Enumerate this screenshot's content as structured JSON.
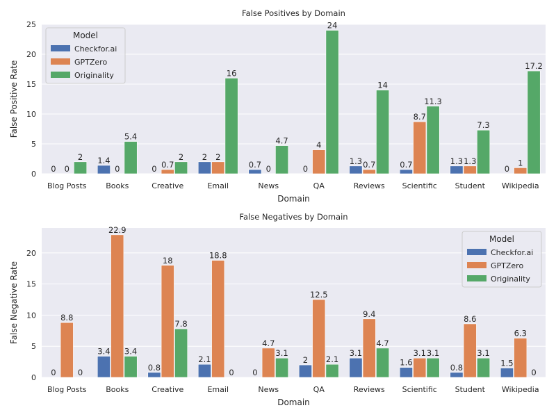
{
  "colors": {
    "background": "#eaeaf2",
    "grid": "#ffffff",
    "series": [
      "#4c72b0",
      "#dd8452",
      "#55a868"
    ]
  },
  "chart_data": [
    {
      "type": "bar",
      "title": "False Positives by Domain",
      "xlabel": "Domain",
      "ylabel": "False Positive Rate",
      "ylim": [
        0,
        25
      ],
      "yticks": [
        0,
        5,
        10,
        15,
        20,
        25
      ],
      "legend_title": "Model",
      "legend_loc": "top-left",
      "categories": [
        "Blog Posts",
        "Books",
        "Creative",
        "Email",
        "News",
        "QA",
        "Reviews",
        "Scientific",
        "Student",
        "Wikipedia"
      ],
      "series": [
        {
          "name": "Checkfor.ai",
          "values": [
            0,
            1.4,
            0,
            2,
            0.7,
            0,
            1.3,
            0.7,
            1.3,
            0
          ]
        },
        {
          "name": "GPTZero",
          "values": [
            0,
            0,
            0.7,
            2,
            0,
            4,
            0.7,
            8.7,
            1.3,
            1
          ]
        },
        {
          "name": "Originality",
          "values": [
            2,
            5.4,
            2,
            16,
            4.7,
            24,
            14,
            11.3,
            7.3,
            17.2
          ]
        }
      ]
    },
    {
      "type": "bar",
      "title": "False Negatives by Domain",
      "xlabel": "Domain",
      "ylabel": "False Negative Rate",
      "ylim": [
        0,
        24
      ],
      "yticks": [
        0,
        5,
        10,
        15,
        20
      ],
      "legend_title": "Model",
      "legend_loc": "top-right",
      "categories": [
        "Blog Posts",
        "Books",
        "Creative",
        "Email",
        "News",
        "QA",
        "Reviews",
        "Scientific",
        "Student",
        "Wikipedia"
      ],
      "series": [
        {
          "name": "Checkfor.ai",
          "values": [
            0,
            3.4,
            0.8,
            2.1,
            0,
            2,
            3.1,
            1.6,
            0.8,
            1.5
          ]
        },
        {
          "name": "GPTZero",
          "values": [
            8.8,
            22.9,
            18,
            18.8,
            4.7,
            12.5,
            9.4,
            3.1,
            8.6,
            6.3
          ]
        },
        {
          "name": "Originality",
          "values": [
            0,
            3.4,
            7.8,
            0,
            3.1,
            2.1,
            4.7,
            3.1,
            3.1,
            0
          ]
        }
      ]
    }
  ]
}
